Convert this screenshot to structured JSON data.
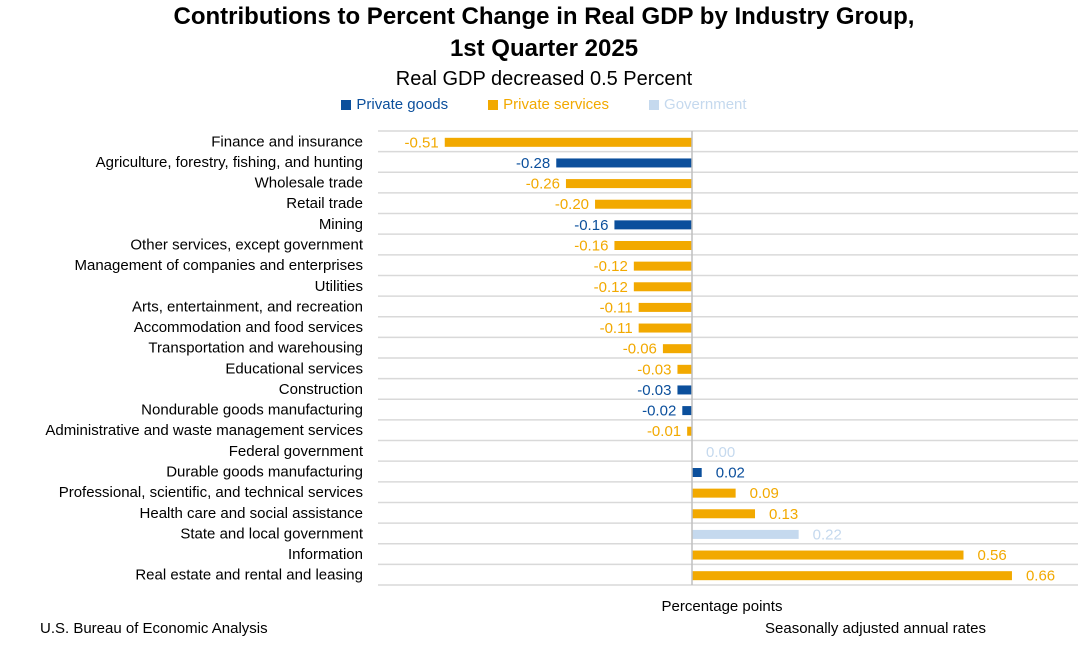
{
  "chart_data": {
    "type": "bar",
    "orientation": "horizontal",
    "title": "Contributions to Percent Change in Real GDP by Industry Group,",
    "title_line2": "1st Quarter 2025",
    "subtitle": "Real GDP decreased 0.5 Percent",
    "xlabel": "Percentage points",
    "xlim": [
      -0.6,
      0.75
    ],
    "legend_position": "top-center",
    "groups": [
      {
        "name": "Private goods",
        "color": "#0b4f9c"
      },
      {
        "name": "Private services",
        "color": "#f2a900"
      },
      {
        "name": "Government",
        "color": "#c5d9ee"
      }
    ],
    "categories": [
      "Finance and insurance",
      "Agriculture, forestry, fishing, and hunting",
      "Wholesale trade",
      "Retail trade",
      "Mining",
      "Other services, except government",
      "Management of companies and enterprises",
      "Utilities",
      "Arts, entertainment, and recreation",
      "Accommodation and food services",
      "Transportation and warehousing",
      "Educational services",
      "Construction",
      "Nondurable goods manufacturing",
      "Administrative and waste management services",
      "Federal government",
      "Durable goods manufacturing",
      "Professional, scientific, and technical services",
      "Health care and social assistance",
      "State and local government",
      "Information",
      "Real estate and rental and leasing"
    ],
    "values": [
      -0.51,
      -0.28,
      -0.26,
      -0.2,
      -0.16,
      -0.16,
      -0.12,
      -0.12,
      -0.11,
      -0.11,
      -0.06,
      -0.03,
      -0.03,
      -0.02,
      -0.01,
      0.0,
      0.02,
      0.09,
      0.13,
      0.22,
      0.56,
      0.66
    ],
    "value_labels": [
      "-0.51",
      "-0.28",
      "-0.26",
      "-0.20",
      "-0.16",
      "-0.16",
      "-0.12",
      "-0.12",
      "-0.11",
      "-0.11",
      "-0.06",
      "-0.03",
      "-0.03",
      "-0.02",
      "-0.01",
      "0.00",
      "0.02",
      "0.09",
      "0.13",
      "0.22",
      "0.56",
      "0.66"
    ],
    "group_index": [
      1,
      0,
      1,
      1,
      0,
      1,
      1,
      1,
      1,
      1,
      1,
      1,
      0,
      0,
      1,
      2,
      0,
      1,
      1,
      2,
      1,
      1
    ],
    "grid": true
  },
  "footer": {
    "source": "U.S. Bureau of Economic Analysis",
    "note": "Seasonally adjusted annual rates"
  }
}
